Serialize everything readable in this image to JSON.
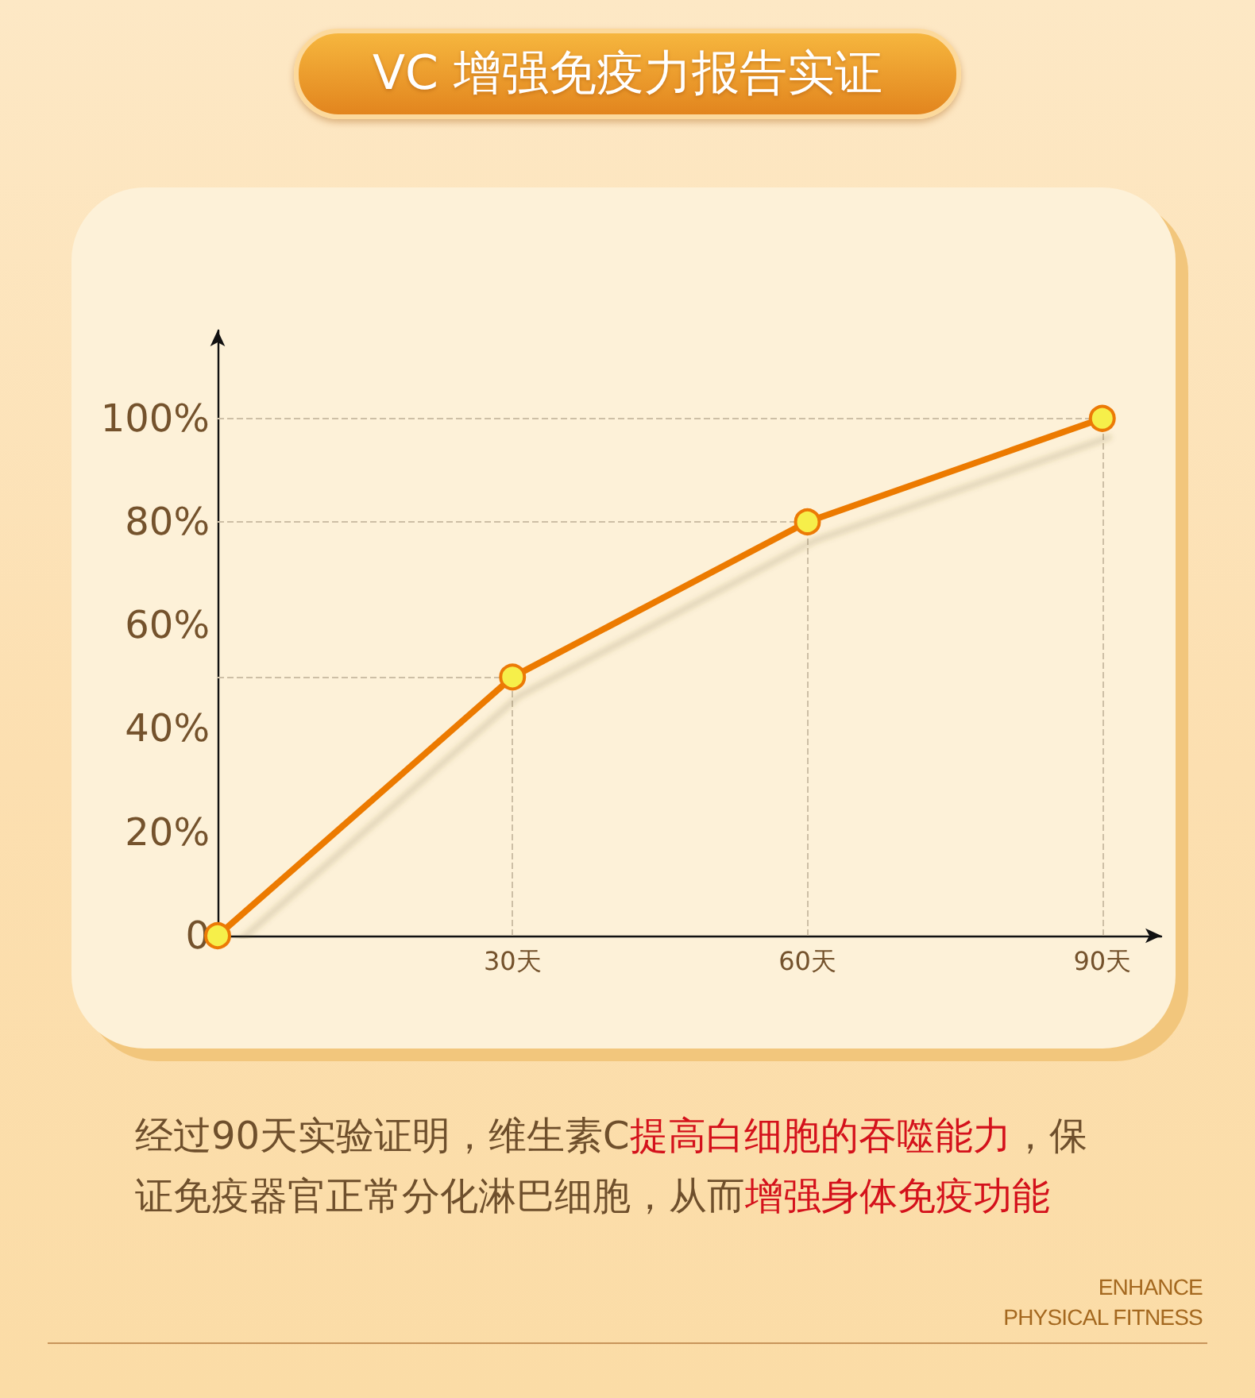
{
  "chart_data": {
    "type": "line",
    "title": "VC 增强免疫力报告实证",
    "x": [
      0,
      30,
      60,
      90
    ],
    "series": [
      {
        "color": "#ec7a06",
        "values": [
          0,
          50,
          80,
          100
        ]
      }
    ],
    "xlim": [
      0,
      96
    ],
    "xticks": [
      {
        "value": 30,
        "label": "30天"
      },
      {
        "value": 60,
        "label": "60天"
      },
      {
        "value": 90,
        "label": "90天"
      }
    ],
    "ylim": [
      0,
      117
    ],
    "yticks": [
      {
        "value": 0,
        "label": "0"
      },
      {
        "value": 20,
        "label": "20%"
      },
      {
        "value": 40,
        "label": "40%"
      },
      {
        "value": 60,
        "label": "60%"
      },
      {
        "value": 80,
        "label": "80%"
      },
      {
        "value": 100,
        "label": "100%"
      }
    ],
    "marker": "circle",
    "line_style": "solid",
    "ref_lines": [
      {
        "axis": "x",
        "value": 30,
        "color": "#cdbfa6",
        "line_style": "dashed"
      },
      {
        "axis": "x",
        "value": 60,
        "color": "#cdbfa6",
        "line_style": "dashed"
      },
      {
        "axis": "x",
        "value": 90,
        "color": "#cdbfa6",
        "line_style": "dashed"
      },
      {
        "axis": "y",
        "value": 50,
        "color": "#cdbfa6",
        "line_style": "dashed"
      },
      {
        "axis": "y",
        "value": 80,
        "color": "#cdbfa6",
        "line_style": "dashed"
      },
      {
        "axis": "y",
        "value": 100,
        "color": "#cdbfa6",
        "line_style": "dashed"
      }
    ],
    "annotations": [
      "经过90天实验证明，维生素C",
      "提高白细胞的吞噬能力",
      "，保",
      "证免疫器官正常分化淋巴细胞，从而",
      "增强身体免疫功能",
      "ENHANCE\nPHYSICAL FITNESS"
    ]
  }
}
